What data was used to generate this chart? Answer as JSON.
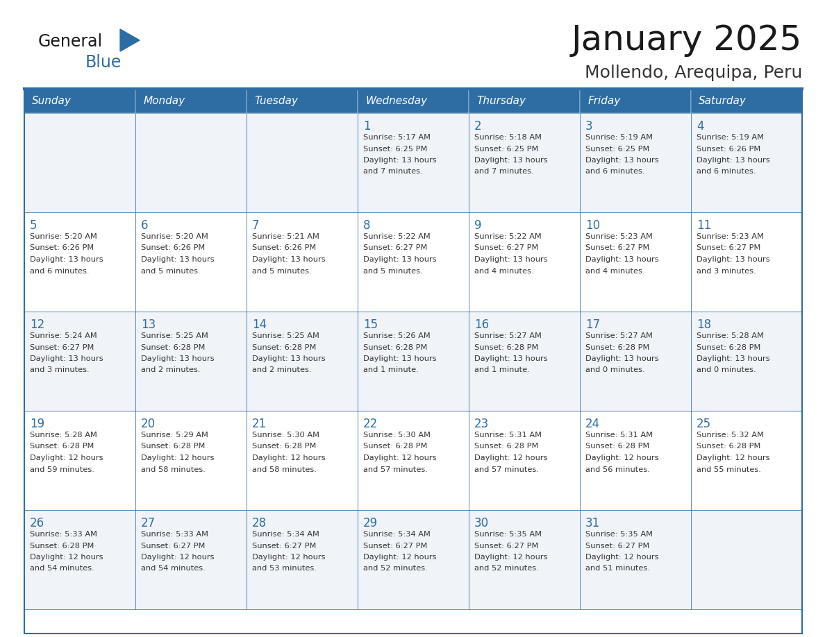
{
  "title": "January 2025",
  "subtitle": "Mollendo, Arequipa, Peru",
  "header_bg": "#2E6DA4",
  "header_text_color": "#FFFFFF",
  "cell_bg_odd": "#F0F4F8",
  "cell_bg_even": "#FFFFFF",
  "cell_border_color": "#2E6DA4",
  "day_names": [
    "Sunday",
    "Monday",
    "Tuesday",
    "Wednesday",
    "Thursday",
    "Friday",
    "Saturday"
  ],
  "title_color": "#1a1a1a",
  "subtitle_color": "#333333",
  "day_number_color": "#2E6DA4",
  "cell_text_color": "#333333",
  "logo_general_color": "#1a1a1a",
  "logo_blue_color": "#2E6DA4",
  "days": [
    {
      "date": 1,
      "col": 3,
      "row": 0,
      "sunrise": "5:17 AM",
      "sunset": "6:25 PM",
      "daylight_hours": 13,
      "daylight_minutes": 7
    },
    {
      "date": 2,
      "col": 4,
      "row": 0,
      "sunrise": "5:18 AM",
      "sunset": "6:25 PM",
      "daylight_hours": 13,
      "daylight_minutes": 7
    },
    {
      "date": 3,
      "col": 5,
      "row": 0,
      "sunrise": "5:19 AM",
      "sunset": "6:25 PM",
      "daylight_hours": 13,
      "daylight_minutes": 6
    },
    {
      "date": 4,
      "col": 6,
      "row": 0,
      "sunrise": "5:19 AM",
      "sunset": "6:26 PM",
      "daylight_hours": 13,
      "daylight_minutes": 6
    },
    {
      "date": 5,
      "col": 0,
      "row": 1,
      "sunrise": "5:20 AM",
      "sunset": "6:26 PM",
      "daylight_hours": 13,
      "daylight_minutes": 6
    },
    {
      "date": 6,
      "col": 1,
      "row": 1,
      "sunrise": "5:20 AM",
      "sunset": "6:26 PM",
      "daylight_hours": 13,
      "daylight_minutes": 5
    },
    {
      "date": 7,
      "col": 2,
      "row": 1,
      "sunrise": "5:21 AM",
      "sunset": "6:26 PM",
      "daylight_hours": 13,
      "daylight_minutes": 5
    },
    {
      "date": 8,
      "col": 3,
      "row": 1,
      "sunrise": "5:22 AM",
      "sunset": "6:27 PM",
      "daylight_hours": 13,
      "daylight_minutes": 5
    },
    {
      "date": 9,
      "col": 4,
      "row": 1,
      "sunrise": "5:22 AM",
      "sunset": "6:27 PM",
      "daylight_hours": 13,
      "daylight_minutes": 4
    },
    {
      "date": 10,
      "col": 5,
      "row": 1,
      "sunrise": "5:23 AM",
      "sunset": "6:27 PM",
      "daylight_hours": 13,
      "daylight_minutes": 4
    },
    {
      "date": 11,
      "col": 6,
      "row": 1,
      "sunrise": "5:23 AM",
      "sunset": "6:27 PM",
      "daylight_hours": 13,
      "daylight_minutes": 3
    },
    {
      "date": 12,
      "col": 0,
      "row": 2,
      "sunrise": "5:24 AM",
      "sunset": "6:27 PM",
      "daylight_hours": 13,
      "daylight_minutes": 3
    },
    {
      "date": 13,
      "col": 1,
      "row": 2,
      "sunrise": "5:25 AM",
      "sunset": "6:28 PM",
      "daylight_hours": 13,
      "daylight_minutes": 2
    },
    {
      "date": 14,
      "col": 2,
      "row": 2,
      "sunrise": "5:25 AM",
      "sunset": "6:28 PM",
      "daylight_hours": 13,
      "daylight_minutes": 2
    },
    {
      "date": 15,
      "col": 3,
      "row": 2,
      "sunrise": "5:26 AM",
      "sunset": "6:28 PM",
      "daylight_hours": 13,
      "daylight_minutes": 1
    },
    {
      "date": 16,
      "col": 4,
      "row": 2,
      "sunrise": "5:27 AM",
      "sunset": "6:28 PM",
      "daylight_hours": 13,
      "daylight_minutes": 1
    },
    {
      "date": 17,
      "col": 5,
      "row": 2,
      "sunrise": "5:27 AM",
      "sunset": "6:28 PM",
      "daylight_hours": 13,
      "daylight_minutes": 0
    },
    {
      "date": 18,
      "col": 6,
      "row": 2,
      "sunrise": "5:28 AM",
      "sunset": "6:28 PM",
      "daylight_hours": 13,
      "daylight_minutes": 0
    },
    {
      "date": 19,
      "col": 0,
      "row": 3,
      "sunrise": "5:28 AM",
      "sunset": "6:28 PM",
      "daylight_hours": 12,
      "daylight_minutes": 59
    },
    {
      "date": 20,
      "col": 1,
      "row": 3,
      "sunrise": "5:29 AM",
      "sunset": "6:28 PM",
      "daylight_hours": 12,
      "daylight_minutes": 58
    },
    {
      "date": 21,
      "col": 2,
      "row": 3,
      "sunrise": "5:30 AM",
      "sunset": "6:28 PM",
      "daylight_hours": 12,
      "daylight_minutes": 58
    },
    {
      "date": 22,
      "col": 3,
      "row": 3,
      "sunrise": "5:30 AM",
      "sunset": "6:28 PM",
      "daylight_hours": 12,
      "daylight_minutes": 57
    },
    {
      "date": 23,
      "col": 4,
      "row": 3,
      "sunrise": "5:31 AM",
      "sunset": "6:28 PM",
      "daylight_hours": 12,
      "daylight_minutes": 57
    },
    {
      "date": 24,
      "col": 5,
      "row": 3,
      "sunrise": "5:31 AM",
      "sunset": "6:28 PM",
      "daylight_hours": 12,
      "daylight_minutes": 56
    },
    {
      "date": 25,
      "col": 6,
      "row": 3,
      "sunrise": "5:32 AM",
      "sunset": "6:28 PM",
      "daylight_hours": 12,
      "daylight_minutes": 55
    },
    {
      "date": 26,
      "col": 0,
      "row": 4,
      "sunrise": "5:33 AM",
      "sunset": "6:28 PM",
      "daylight_hours": 12,
      "daylight_minutes": 54
    },
    {
      "date": 27,
      "col": 1,
      "row": 4,
      "sunrise": "5:33 AM",
      "sunset": "6:27 PM",
      "daylight_hours": 12,
      "daylight_minutes": 54
    },
    {
      "date": 28,
      "col": 2,
      "row": 4,
      "sunrise": "5:34 AM",
      "sunset": "6:27 PM",
      "daylight_hours": 12,
      "daylight_minutes": 53
    },
    {
      "date": 29,
      "col": 3,
      "row": 4,
      "sunrise": "5:34 AM",
      "sunset": "6:27 PM",
      "daylight_hours": 12,
      "daylight_minutes": 52
    },
    {
      "date": 30,
      "col": 4,
      "row": 4,
      "sunrise": "5:35 AM",
      "sunset": "6:27 PM",
      "daylight_hours": 12,
      "daylight_minutes": 52
    },
    {
      "date": 31,
      "col": 5,
      "row": 4,
      "sunrise": "5:35 AM",
      "sunset": "6:27 PM",
      "daylight_hours": 12,
      "daylight_minutes": 51
    }
  ]
}
